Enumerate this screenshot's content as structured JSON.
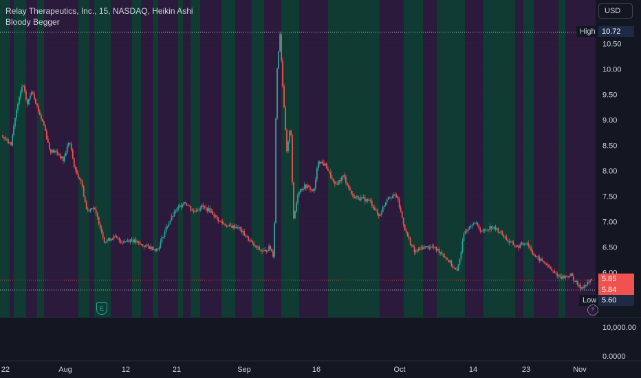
{
  "legend": {
    "title": "Relay Therapeutics, Inc., 15, NASDAQ, Heikin Ashi",
    "indicator": "Bloody Begger"
  },
  "currency": "USD",
  "colors": {
    "background": "#131722",
    "up": "#26a69a",
    "down": "#ef5350",
    "band_green": "#0f3b33",
    "band_purple": "#2b1a3c",
    "text": "#d1d4dc",
    "grid": "#2a2e39"
  },
  "price_tags": {
    "high_label": "High",
    "high_value": "10.72",
    "low_label": "Low",
    "low_value": "5.60",
    "last_close": "5.85",
    "last_open": "5.84"
  },
  "icons": {
    "earnings": "earnings-icon",
    "earnings_letter": "E",
    "lightning": "lightning-icon",
    "lightning_glyph": "⚡"
  },
  "chart_data": {
    "type": "candlestick",
    "style": "Heikin Ashi",
    "symbol": "Relay Therapeutics, Inc.",
    "exchange": "NASDAQ",
    "interval": "15",
    "price_axis_ticks": [
      "10.50",
      "10.00",
      "9.50",
      "9.00",
      "8.50",
      "8.00",
      "7.50",
      "7.00",
      "6.50",
      "6.00"
    ],
    "volume_axis_ticks": [
      "10,000.00",
      "0.0000"
    ],
    "time_axis_ticks": [
      "22",
      "Aug",
      "12",
      "21",
      "Sep",
      "16",
      "Oct",
      "14",
      "23",
      "Nov"
    ],
    "ylim": [
      5.6,
      10.72
    ],
    "high": 10.72,
    "low": 5.6,
    "last_close": 5.85,
    "last_open": 5.84,
    "price_path": [
      {
        "t": 0.0,
        "p": 8.7
      },
      {
        "t": 0.008,
        "p": 8.6
      },
      {
        "t": 0.016,
        "p": 8.5
      },
      {
        "t": 0.024,
        "p": 9.1
      },
      {
        "t": 0.036,
        "p": 9.7
      },
      {
        "t": 0.044,
        "p": 9.3
      },
      {
        "t": 0.052,
        "p": 9.6
      },
      {
        "t": 0.062,
        "p": 9.2
      },
      {
        "t": 0.072,
        "p": 8.9
      },
      {
        "t": 0.082,
        "p": 8.4
      },
      {
        "t": 0.095,
        "p": 8.35
      },
      {
        "t": 0.105,
        "p": 8.2
      },
      {
        "t": 0.115,
        "p": 8.6
      },
      {
        "t": 0.125,
        "p": 8.0
      },
      {
        "t": 0.135,
        "p": 7.8
      },
      {
        "t": 0.145,
        "p": 7.2
      },
      {
        "t": 0.155,
        "p": 7.3
      },
      {
        "t": 0.165,
        "p": 7.0
      },
      {
        "t": 0.175,
        "p": 6.6
      },
      {
        "t": 0.19,
        "p": 6.7
      },
      {
        "t": 0.205,
        "p": 6.6
      },
      {
        "t": 0.22,
        "p": 6.65
      },
      {
        "t": 0.235,
        "p": 6.55
      },
      {
        "t": 0.25,
        "p": 6.5
      },
      {
        "t": 0.265,
        "p": 6.45
      },
      {
        "t": 0.28,
        "p": 6.9
      },
      {
        "t": 0.295,
        "p": 7.2
      },
      {
        "t": 0.31,
        "p": 7.4
      },
      {
        "t": 0.325,
        "p": 7.2
      },
      {
        "t": 0.34,
        "p": 7.3
      },
      {
        "t": 0.355,
        "p": 7.2
      },
      {
        "t": 0.37,
        "p": 7.0
      },
      {
        "t": 0.385,
        "p": 6.9
      },
      {
        "t": 0.4,
        "p": 6.9
      },
      {
        "t": 0.415,
        "p": 6.7
      },
      {
        "t": 0.43,
        "p": 6.5
      },
      {
        "t": 0.445,
        "p": 6.4
      },
      {
        "t": 0.455,
        "p": 6.5
      },
      {
        "t": 0.462,
        "p": 6.3
      },
      {
        "t": 0.466,
        "p": 9.8
      },
      {
        "t": 0.472,
        "p": 10.72
      },
      {
        "t": 0.478,
        "p": 9.4
      },
      {
        "t": 0.484,
        "p": 8.3
      },
      {
        "t": 0.49,
        "p": 9.0
      },
      {
        "t": 0.495,
        "p": 7.0
      },
      {
        "t": 0.503,
        "p": 7.6
      },
      {
        "t": 0.515,
        "p": 7.7
      },
      {
        "t": 0.53,
        "p": 7.6
      },
      {
        "t": 0.537,
        "p": 8.2
      },
      {
        "t": 0.55,
        "p": 8.1
      },
      {
        "t": 0.565,
        "p": 7.7
      },
      {
        "t": 0.58,
        "p": 7.9
      },
      {
        "t": 0.595,
        "p": 7.5
      },
      {
        "t": 0.61,
        "p": 7.45
      },
      {
        "t": 0.625,
        "p": 7.4
      },
      {
        "t": 0.64,
        "p": 7.1
      },
      {
        "t": 0.655,
        "p": 7.5
      },
      {
        "t": 0.67,
        "p": 7.5
      },
      {
        "t": 0.685,
        "p": 6.8
      },
      {
        "t": 0.7,
        "p": 6.4
      },
      {
        "t": 0.715,
        "p": 6.5
      },
      {
        "t": 0.73,
        "p": 6.5
      },
      {
        "t": 0.745,
        "p": 6.4
      },
      {
        "t": 0.76,
        "p": 6.2
      },
      {
        "t": 0.772,
        "p": 6.0
      },
      {
        "t": 0.785,
        "p": 6.8
      },
      {
        "t": 0.8,
        "p": 7.0
      },
      {
        "t": 0.815,
        "p": 6.8
      },
      {
        "t": 0.83,
        "p": 6.9
      },
      {
        "t": 0.845,
        "p": 6.8
      },
      {
        "t": 0.86,
        "p": 6.6
      },
      {
        "t": 0.875,
        "p": 6.5
      },
      {
        "t": 0.89,
        "p": 6.6
      },
      {
        "t": 0.905,
        "p": 6.3
      },
      {
        "t": 0.92,
        "p": 6.2
      },
      {
        "t": 0.935,
        "p": 6.0
      },
      {
        "t": 0.95,
        "p": 5.9
      },
      {
        "t": 0.965,
        "p": 5.95
      },
      {
        "t": 0.98,
        "p": 5.7
      },
      {
        "t": 0.99,
        "p": 5.75
      },
      {
        "t": 1.0,
        "p": 5.85
      }
    ]
  }
}
